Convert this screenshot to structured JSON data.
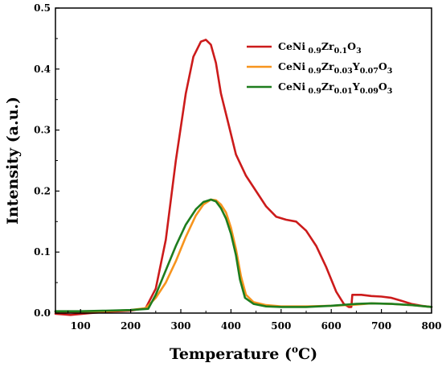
{
  "chart_data": {
    "type": "line",
    "xlabel": "Temperature (",
    "xlabel_sup": "o",
    "xlabel_tail": "C)",
    "ylabel": "Intensity (a.u.)",
    "xlim": [
      50,
      800
    ],
    "ylim": [
      0,
      0.5
    ],
    "x_ticks": [
      "100",
      "200",
      "300",
      "400",
      "500",
      "600",
      "700",
      "800"
    ],
    "y_ticks": [
      "0.0",
      "0.1",
      "0.2",
      "0.3",
      "0.4",
      "0.5"
    ],
    "legend_position": "top-right",
    "grid": false,
    "series": [
      {
        "name": "CeNi 0.9Zr0.1O3",
        "legend_parts": [
          {
            "t": "CeNi",
            "sub": false
          },
          {
            "t": " 0.9",
            "sub": true
          },
          {
            "t": "Zr",
            "sub": false
          },
          {
            "t": "0.1",
            "sub": true
          },
          {
            "t": "O",
            "sub": false
          },
          {
            "t": "3",
            "sub": true
          }
        ],
        "color": "#cc1b1b",
        "points": [
          [
            50,
            -0.001
          ],
          [
            80,
            -0.003
          ],
          [
            120,
            0.0
          ],
          [
            150,
            0.002
          ],
          [
            200,
            0.004
          ],
          [
            230,
            0.008
          ],
          [
            250,
            0.04
          ],
          [
            270,
            0.12
          ],
          [
            290,
            0.25
          ],
          [
            310,
            0.36
          ],
          [
            325,
            0.42
          ],
          [
            340,
            0.445
          ],
          [
            350,
            0.448
          ],
          [
            360,
            0.44
          ],
          [
            370,
            0.41
          ],
          [
            380,
            0.36
          ],
          [
            395,
            0.31
          ],
          [
            410,
            0.26
          ],
          [
            430,
            0.225
          ],
          [
            450,
            0.2
          ],
          [
            470,
            0.175
          ],
          [
            490,
            0.158
          ],
          [
            510,
            0.153
          ],
          [
            530,
            0.15
          ],
          [
            550,
            0.135
          ],
          [
            570,
            0.11
          ],
          [
            590,
            0.075
          ],
          [
            610,
            0.035
          ],
          [
            625,
            0.015
          ],
          [
            635,
            0.01
          ],
          [
            640,
            0.01
          ],
          [
            642,
            0.03
          ],
          [
            660,
            0.03
          ],
          [
            680,
            0.028
          ],
          [
            700,
            0.027
          ],
          [
            720,
            0.025
          ],
          [
            740,
            0.02
          ],
          [
            760,
            0.015
          ],
          [
            780,
            0.012
          ],
          [
            800,
            0.01
          ]
        ]
      },
      {
        "name": "CeNi 0.9Zr0.03Y0.07O3",
        "legend_parts": [
          {
            "t": "CeNi",
            "sub": false
          },
          {
            "t": " 0.9",
            "sub": true
          },
          {
            "t": "Zr",
            "sub": false
          },
          {
            "t": "0.03",
            "sub": true
          },
          {
            "t": "Y",
            "sub": false
          },
          {
            "t": "0.07",
            "sub": true
          },
          {
            "t": "O",
            "sub": false
          },
          {
            "t": "3",
            "sub": true
          }
        ],
        "color": "#f7941d",
        "points": [
          [
            50,
            0.002
          ],
          [
            100,
            0.002
          ],
          [
            150,
            0.003
          ],
          [
            200,
            0.005
          ],
          [
            230,
            0.008
          ],
          [
            250,
            0.025
          ],
          [
            270,
            0.05
          ],
          [
            290,
            0.085
          ],
          [
            310,
            0.125
          ],
          [
            330,
            0.16
          ],
          [
            345,
            0.178
          ],
          [
            360,
            0.186
          ],
          [
            370,
            0.185
          ],
          [
            380,
            0.178
          ],
          [
            390,
            0.165
          ],
          [
            400,
            0.14
          ],
          [
            410,
            0.105
          ],
          [
            420,
            0.06
          ],
          [
            430,
            0.03
          ],
          [
            445,
            0.018
          ],
          [
            470,
            0.013
          ],
          [
            500,
            0.011
          ],
          [
            550,
            0.011
          ],
          [
            600,
            0.012
          ],
          [
            650,
            0.014
          ],
          [
            680,
            0.016
          ],
          [
            720,
            0.015
          ],
          [
            760,
            0.013
          ],
          [
            800,
            0.01
          ]
        ]
      },
      {
        "name": "CeNi 0.9Zr0.01Y0.09O3",
        "legend_parts": [
          {
            "t": "CeNi",
            "sub": false
          },
          {
            "t": " 0.9",
            "sub": true
          },
          {
            "t": "Zr",
            "sub": false
          },
          {
            "t": "0.01",
            "sub": true
          },
          {
            "t": "Y",
            "sub": false
          },
          {
            "t": "0.09",
            "sub": true
          },
          {
            "t": "O",
            "sub": false
          },
          {
            "t": "3",
            "sub": true
          }
        ],
        "color": "#1e7d1e",
        "points": [
          [
            50,
            0.003
          ],
          [
            100,
            0.003
          ],
          [
            150,
            0.004
          ],
          [
            200,
            0.005
          ],
          [
            235,
            0.007
          ],
          [
            250,
            0.03
          ],
          [
            270,
            0.07
          ],
          [
            290,
            0.11
          ],
          [
            310,
            0.145
          ],
          [
            330,
            0.17
          ],
          [
            345,
            0.182
          ],
          [
            360,
            0.186
          ],
          [
            370,
            0.183
          ],
          [
            380,
            0.172
          ],
          [
            390,
            0.155
          ],
          [
            400,
            0.13
          ],
          [
            410,
            0.095
          ],
          [
            418,
            0.055
          ],
          [
            428,
            0.025
          ],
          [
            445,
            0.015
          ],
          [
            470,
            0.011
          ],
          [
            500,
            0.01
          ],
          [
            550,
            0.01
          ],
          [
            600,
            0.012
          ],
          [
            650,
            0.015
          ],
          [
            680,
            0.016
          ],
          [
            720,
            0.015
          ],
          [
            760,
            0.013
          ],
          [
            800,
            0.01
          ]
        ]
      }
    ]
  }
}
